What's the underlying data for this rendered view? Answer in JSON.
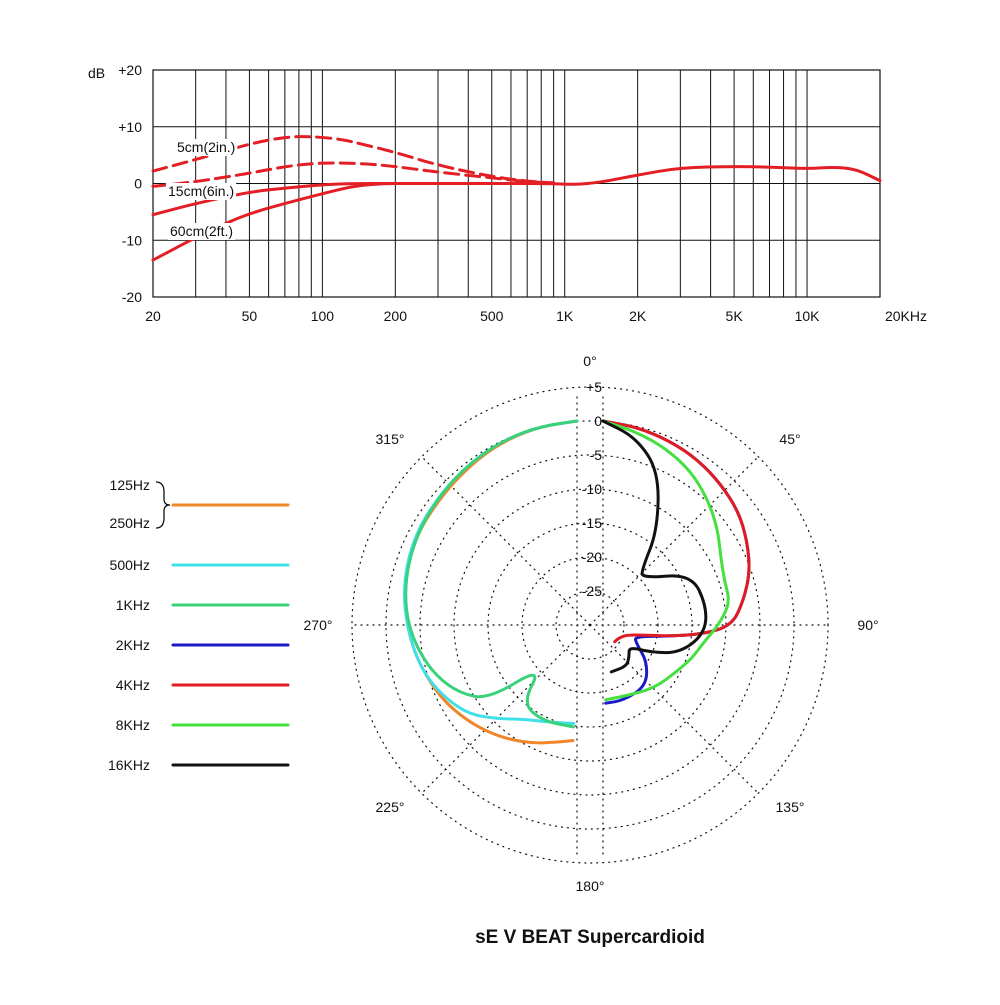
{
  "frequency_chart": {
    "chart_data": {
      "type": "line",
      "x_scale": "log",
      "xlim": [
        20,
        20000
      ],
      "ylim": [
        -20,
        20
      ],
      "ylabel": "dB",
      "x_tick_values": [
        20,
        50,
        100,
        200,
        500,
        1000,
        2000,
        5000,
        10000,
        20000
      ],
      "x_tick_labels": [
        "20",
        "50",
        "100",
        "200",
        "500",
        "1K",
        "2K",
        "5K",
        "10K",
        "20KHz"
      ],
      "y_tick_values": [
        20,
        10,
        0,
        -10,
        -20
      ],
      "y_tick_labels": [
        "+20",
        "+10",
        "0",
        "-10",
        "-20"
      ],
      "grid": true,
      "series": [
        {
          "name": "5cm(2in.)",
          "style": "dashed",
          "color": "#e31e24",
          "x": [
            20,
            30,
            50,
            70,
            90,
            120,
            150,
            200,
            300,
            500,
            700,
            900
          ],
          "y": [
            2.2,
            4.2,
            7,
            8.2,
            8.3,
            7.8,
            6.8,
            5.5,
            3.2,
            1.2,
            0.4,
            0.1
          ]
        },
        {
          "name": "15cm(6in.)",
          "style": "dashed",
          "color": "#e31e24",
          "x": [
            20,
            30,
            50,
            70,
            100,
            150,
            200,
            300,
            500,
            700,
            900
          ],
          "y": [
            -0.5,
            0.3,
            1.8,
            3,
            3.7,
            3.5,
            3,
            2,
            1,
            0.3,
            0.1
          ]
        },
        {
          "name": "",
          "style": "solid",
          "color": "#e31e24",
          "x": [
            20,
            30,
            50,
            70,
            100,
            130,
            200,
            500,
            900,
            1100,
            1400,
            2000,
            3000,
            5000,
            7000,
            10000,
            13000,
            16000,
            20000
          ],
          "y": [
            -5.5,
            -3.5,
            -1.5,
            -0.8,
            -0.2,
            0,
            0,
            0,
            0,
            -0.2,
            0.2,
            1.5,
            2.8,
            3,
            2.9,
            2.6,
            2.9,
            2.5,
            0.5
          ]
        },
        {
          "name": "60cm(2ft.)",
          "style": "solid",
          "color": "#e31e24",
          "x": [
            20,
            30,
            40,
            50,
            70,
            100,
            130,
            160,
            200
          ],
          "y": [
            -13.5,
            -9.5,
            -7,
            -5.3,
            -3.5,
            -1.8,
            -0.6,
            -0.1,
            0
          ]
        }
      ]
    }
  },
  "polar_chart": {
    "chart_data": {
      "type": "line",
      "subtype": "polar",
      "title": "sE V BEAT Supercardioid",
      "r_unit": "dB",
      "r_range": [
        -30,
        5
      ],
      "r_tick_labels": [
        "+5",
        "0",
        "-5",
        "-10",
        "-15",
        "-20",
        "-25"
      ],
      "angle_labels": [
        "0°",
        "45°",
        "90°",
        "135°",
        "180°",
        "225°",
        "270°",
        "315°"
      ],
      "grid": true,
      "series": [
        {
          "name": "125Hz\n250Hz",
          "color": "#f0862a",
          "side": "left",
          "points": [
            [
              0,
              0
            ],
            [
              10,
              -0.3
            ],
            [
              20,
              -0.8
            ],
            [
              30,
              -1.5
            ],
            [
              40,
              -2.2
            ],
            [
              50,
              -2.7
            ],
            [
              60,
              -3
            ],
            [
              70,
              -3.5
            ],
            [
              80,
              -4.2
            ],
            [
              90,
              -5
            ],
            [
              100,
              -5.8
            ],
            [
              110,
              -6.7
            ],
            [
              120,
              -7.5
            ],
            [
              130,
              -8.5
            ],
            [
              140,
              -9.5
            ],
            [
              150,
              -10.5
            ],
            [
              160,
              -11.5
            ],
            [
              170,
              -12.5
            ],
            [
              178,
              -13
            ]
          ]
        },
        {
          "name": "500Hz",
          "color": "#40e0ea",
          "side": "left",
          "points": [
            [
              0,
              0
            ],
            [
              10,
              -0.3
            ],
            [
              20,
              -0.7
            ],
            [
              30,
              -1.3
            ],
            [
              40,
              -1.9
            ],
            [
              50,
              -2.4
            ],
            [
              60,
              -2.8
            ],
            [
              70,
              -3.4
            ],
            [
              80,
              -4.1
            ],
            [
              90,
              -5
            ],
            [
              100,
              -5.8
            ],
            [
              110,
              -6.7
            ],
            [
              120,
              -8
            ],
            [
              130,
              -9.5
            ],
            [
              140,
              -12
            ],
            [
              150,
              -14
            ],
            [
              165,
              -15.2
            ],
            [
              178,
              -15.5
            ]
          ]
        },
        {
          "name": "1KHz",
          "color": "#39d17a",
          "side": "left",
          "points": [
            [
              0,
              0
            ],
            [
              10,
              -0.3
            ],
            [
              20,
              -0.7
            ],
            [
              30,
              -1.3
            ],
            [
              40,
              -1.9
            ],
            [
              50,
              -2.5
            ],
            [
              60,
              -3
            ],
            [
              70,
              -3.6
            ],
            [
              80,
              -4.3
            ],
            [
              90,
              -5.2
            ],
            [
              100,
              -6.5
            ],
            [
              110,
              -8
            ],
            [
              120,
              -10
            ],
            [
              130,
              -13
            ],
            [
              140,
              -22
            ],
            [
              145,
              -16
            ],
            [
              160,
              -15
            ],
            [
              178,
              -15
            ]
          ]
        },
        {
          "name": "2KHz",
          "color": "#1a1ac8",
          "side": "right",
          "points": [
            [
              0,
              0
            ],
            [
              10,
              -0.5
            ],
            [
              20,
              -1.2
            ],
            [
              30,
              -2
            ],
            [
              40,
              -3
            ],
            [
              50,
              -4
            ],
            [
              60,
              -5.5
            ],
            [
              70,
              -7
            ],
            [
              80,
              -9
            ],
            [
              90,
              -11
            ],
            [
              95,
              -15
            ],
            [
              100,
              -20.5
            ],
            [
              110,
              -25
            ],
            [
              118,
              -24.5
            ],
            [
              130,
              -21.5
            ],
            [
              145,
              -19
            ],
            [
              165,
              -18.5
            ],
            [
              178,
              -18.5
            ]
          ]
        },
        {
          "name": "4KHz",
          "color": "#e01b22",
          "side": "right",
          "points": [
            [
              0,
              0
            ],
            [
              10,
              -0.5
            ],
            [
              20,
              -1.2
            ],
            [
              30,
              -2
            ],
            [
              40,
              -3
            ],
            [
              50,
              -4
            ],
            [
              60,
              -5.5
            ],
            [
              70,
              -7
            ],
            [
              80,
              -9
            ],
            [
              90,
              -11
            ],
            [
              95,
              -15
            ],
            [
              100,
              -20.5
            ],
            [
              110,
              -26
            ],
            [
              130,
              -27
            ],
            [
              145,
              -27
            ]
          ]
        },
        {
          "name": "8KHz",
          "color": "#45e03f",
          "side": "right",
          "points": [
            [
              0,
              0
            ],
            [
              10,
              -1.2
            ],
            [
              20,
              -2.5
            ],
            [
              30,
              -4
            ],
            [
              40,
              -6
            ],
            [
              50,
              -8
            ],
            [
              60,
              -10
            ],
            [
              70,
              -11
            ],
            [
              80,
              -11
            ],
            [
              90,
              -13
            ],
            [
              100,
              -15
            ],
            [
              110,
              -16
            ],
            [
              120,
              -17
            ],
            [
              140,
              -18
            ],
            [
              160,
              -19
            ],
            [
              178,
              -19
            ]
          ]
        },
        {
          "name": "16KHz",
          "color": "#111111",
          "side": "right",
          "points": [
            [
              0,
              0
            ],
            [
              10,
              -2
            ],
            [
              20,
              -6
            ],
            [
              30,
              -14
            ],
            [
              35,
              -20
            ],
            [
              40,
              -21
            ],
            [
              60,
              -15
            ],
            [
              80,
              -14.5
            ],
            [
              95,
              -15
            ],
            [
              110,
              -18
            ],
            [
              120,
              -22
            ],
            [
              130,
              -25
            ],
            [
              140,
              -24
            ],
            [
              150,
              -23
            ],
            [
              170,
              -23
            ]
          ]
        }
      ]
    }
  }
}
